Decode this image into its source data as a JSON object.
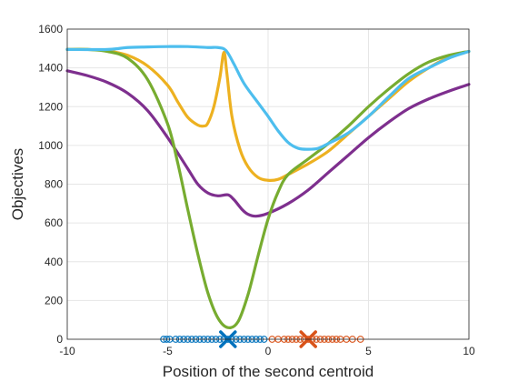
{
  "chart_data": {
    "type": "line",
    "xlabel": "Position of the second centroid",
    "ylabel": "Objectives",
    "xlim": [
      -10,
      10
    ],
    "ylim": [
      0,
      1600
    ],
    "xticks": [
      "-10",
      "-5",
      "0",
      "5",
      "10"
    ],
    "xtick_values": [
      -10,
      -5,
      0,
      5,
      10
    ],
    "yticks": [
      "0",
      "200",
      "400",
      "600",
      "800",
      "1000",
      "1200",
      "1400",
      "1600"
    ],
    "ytick_values": [
      0,
      200,
      400,
      600,
      800,
      1000,
      1200,
      1400,
      1600
    ],
    "grid": true,
    "series": [
      {
        "color": "#7E2F8E",
        "points": [
          [
            -10,
            1385
          ],
          [
            -9,
            1360
          ],
          [
            -8,
            1325
          ],
          [
            -7,
            1270
          ],
          [
            -6,
            1180
          ],
          [
            -5,
            1040
          ],
          [
            -4,
            880
          ],
          [
            -3.5,
            800
          ],
          [
            -3,
            755
          ],
          [
            -2.5,
            740
          ],
          [
            -2,
            745
          ],
          [
            -1.7,
            720
          ],
          [
            -1.3,
            670
          ],
          [
            -1,
            645
          ],
          [
            -0.6,
            635
          ],
          [
            0,
            650
          ],
          [
            1,
            700
          ],
          [
            2,
            770
          ],
          [
            3,
            860
          ],
          [
            4,
            950
          ],
          [
            5,
            1040
          ],
          [
            6,
            1120
          ],
          [
            7,
            1190
          ],
          [
            8,
            1240
          ],
          [
            9,
            1280
          ],
          [
            10,
            1315
          ]
        ]
      },
      {
        "color": "#EDB120",
        "points": [
          [
            -10,
            1495
          ],
          [
            -9,
            1495
          ],
          [
            -8,
            1488
          ],
          [
            -7,
            1465
          ],
          [
            -6,
            1410
          ],
          [
            -5,
            1310
          ],
          [
            -4.5,
            1225
          ],
          [
            -4,
            1145
          ],
          [
            -3.5,
            1105
          ],
          [
            -3.2,
            1100
          ],
          [
            -3,
            1115
          ],
          [
            -2.7,
            1200
          ],
          [
            -2.4,
            1350
          ],
          [
            -2.2,
            1480
          ],
          [
            -2.05,
            1370
          ],
          [
            -1.8,
            1150
          ],
          [
            -1.4,
            980
          ],
          [
            -1,
            890
          ],
          [
            -0.5,
            835
          ],
          [
            0,
            820
          ],
          [
            0.5,
            825
          ],
          [
            1,
            850
          ],
          [
            2,
            905
          ],
          [
            3,
            970
          ],
          [
            4,
            1060
          ],
          [
            5,
            1150
          ],
          [
            6,
            1240
          ],
          [
            7,
            1330
          ],
          [
            8,
            1400
          ],
          [
            9,
            1455
          ],
          [
            10,
            1485
          ]
        ]
      },
      {
        "color": "#77AC30",
        "points": [
          [
            -10,
            1495
          ],
          [
            -9,
            1495
          ],
          [
            -8,
            1485
          ],
          [
            -7,
            1450
          ],
          [
            -6,
            1340
          ],
          [
            -5,
            1110
          ],
          [
            -4.5,
            910
          ],
          [
            -4,
            670
          ],
          [
            -3.5,
            440
          ],
          [
            -3,
            240
          ],
          [
            -2.5,
            110
          ],
          [
            -2,
            60
          ],
          [
            -1.5,
            90
          ],
          [
            -1,
            230
          ],
          [
            -0.5,
            430
          ],
          [
            0,
            620
          ],
          [
            0.5,
            760
          ],
          [
            1,
            850
          ],
          [
            2,
            930
          ],
          [
            3,
            1010
          ],
          [
            4,
            1100
          ],
          [
            5,
            1200
          ],
          [
            6,
            1290
          ],
          [
            7,
            1370
          ],
          [
            8,
            1430
          ],
          [
            9,
            1465
          ],
          [
            10,
            1485
          ]
        ]
      },
      {
        "color": "#4DBEEE",
        "points": [
          [
            -10,
            1495
          ],
          [
            -8,
            1495
          ],
          [
            -7,
            1505
          ],
          [
            -6,
            1508
          ],
          [
            -5,
            1510
          ],
          [
            -4,
            1510
          ],
          [
            -3,
            1505
          ],
          [
            -2.5,
            1505
          ],
          [
            -2.1,
            1490
          ],
          [
            -1.7,
            1420
          ],
          [
            -1.2,
            1320
          ],
          [
            -0.5,
            1220
          ],
          [
            0,
            1150
          ],
          [
            0.5,
            1075
          ],
          [
            1,
            1015
          ],
          [
            1.5,
            985
          ],
          [
            2,
            980
          ],
          [
            2.5,
            985
          ],
          [
            3,
            1010
          ],
          [
            4,
            1065
          ],
          [
            5,
            1150
          ],
          [
            6,
            1250
          ],
          [
            7,
            1345
          ],
          [
            8,
            1400
          ],
          [
            9,
            1450
          ],
          [
            10,
            1485
          ]
        ]
      }
    ],
    "scatter": [
      {
        "color": "#0072BD",
        "marker": "o",
        "x": [
          -5.2,
          -5.05,
          -4.9,
          -4.6,
          -4.4,
          -4.2,
          -4.0,
          -3.8,
          -3.6,
          -3.4,
          -3.2,
          -3.0,
          -2.8,
          -2.6,
          -2.4,
          -2.2,
          -2.0,
          -1.8,
          -1.6,
          -1.4,
          -1.2,
          -1.0,
          -0.8,
          -0.6,
          -0.4,
          -0.2
        ]
      },
      {
        "color": "#D95319",
        "marker": "o",
        "x": [
          0.2,
          0.5,
          0.8,
          1.0,
          1.2,
          1.4,
          1.6,
          1.8,
          2.0,
          2.2,
          2.4,
          2.6,
          2.8,
          3.0,
          3.2,
          3.4,
          3.6,
          3.9,
          4.2,
          4.6
        ]
      }
    ],
    "centroids": [
      {
        "x": -2.0,
        "y": 0,
        "color": "#0072BD",
        "marker": "x"
      },
      {
        "x": 2.0,
        "y": 0,
        "color": "#D95319",
        "marker": "x"
      }
    ]
  }
}
